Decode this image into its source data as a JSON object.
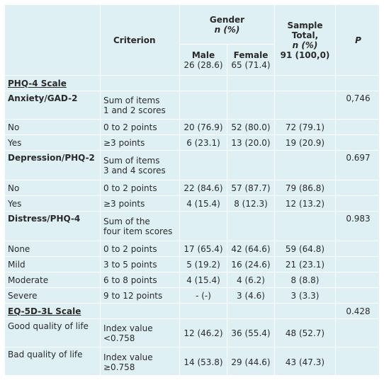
{
  "header": {
    "criterion": "Criterion",
    "gender_line1": "Gender",
    "gender_line2": "n (%)",
    "male_label": "Male",
    "male_count": "26 (28.6)",
    "female_label": "Female",
    "female_count": "65 (71.4)",
    "total_line1": "Sample Total,",
    "total_line2": "n (%)",
    "total_line3": "91 (100,0)",
    "p": "P"
  },
  "sections": {
    "phq4_scale": "PHQ-4 Scale",
    "anxiety": {
      "label": "Anxiety/GAD-2",
      "criterion_line1": "Sum of items",
      "criterion_line2": "1 and 2 scores",
      "p": "0,746",
      "rows": [
        {
          "label": "No",
          "criterion": "0 to 2 points",
          "male": "20 (76.9)",
          "female": "52 (80.0)",
          "total": "72 (79.1)"
        },
        {
          "label": "Yes",
          "criterion": "≥3 points",
          "male": "6 (23.1)",
          "female": "13 (20.0)",
          "total": "19 (20.9)"
        }
      ]
    },
    "depression": {
      "label": "Depression/PHQ-2",
      "criterion_line1": "Sum of items",
      "criterion_line2": "3 and 4 scores",
      "p": "0.697",
      "rows": [
        {
          "label": "No",
          "criterion": "0 to 2 points",
          "male": "22 (84.6)",
          "female": "57 (87.7)",
          "total": "79 (86.8)"
        },
        {
          "label": "Yes",
          "criterion": "≥3 points",
          "male": "4 (15.4)",
          "female": "8 (12.3)",
          "total": "12 (13.2)"
        }
      ]
    },
    "distress": {
      "label": "Distress/PHQ-4",
      "criterion_line1": "Sum of the",
      "criterion_line2": "four item scores",
      "p": "0.983",
      "rows": [
        {
          "label": "None",
          "criterion": "0 to 2 points",
          "male": "17 (65.4)",
          "female": "42 (64.6)",
          "total": "59 (64.8)"
        },
        {
          "label": "Mild",
          "criterion": "3 to 5 points",
          "male": "5 (19.2)",
          "female": "16 (24.6)",
          "total": "21 (23.1)"
        },
        {
          "label": "Moderate",
          "criterion": "6 to 8 points",
          "male": "4 (15.4)",
          "female": "4 (6.2)",
          "total": "8 (8.8)"
        },
        {
          "label": "Severe",
          "criterion": "9 to 12 points",
          "male": "- (-)",
          "female": "3 (4.6)",
          "total": "3 (3.3)"
        }
      ]
    },
    "eq5d": {
      "label": "EQ-5D-3L Scale",
      "p": "0.428",
      "rows": [
        {
          "label": "Good quality of life",
          "criterion_line1": "Index value",
          "criterion_line2": "<0.758",
          "male": "12 (46.2)",
          "female": "36 (55.4)",
          "total": "48 (52.7)"
        },
        {
          "label": "Bad quality of life",
          "criterion_line1": "Index value",
          "criterion_line2": "≥0.758",
          "male": "14 (53.8)",
          "female": "29 (44.6)",
          "total": "43 (47.3)"
        }
      ]
    }
  }
}
